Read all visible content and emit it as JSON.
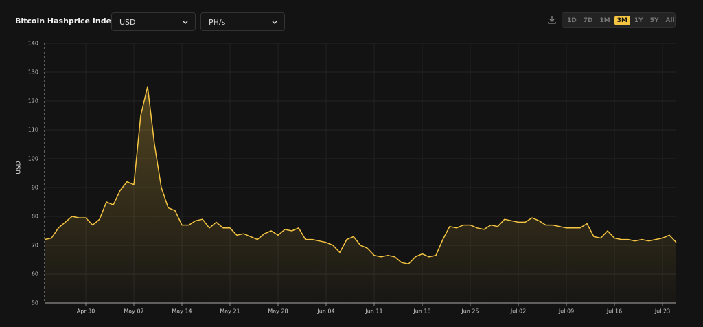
{
  "chart_data": {
    "type": "line",
    "title": "Bitcoin Hashprice Index",
    "y_label": "USD",
    "x": [
      "Apr 24",
      "Apr 25",
      "Apr 26",
      "Apr 27",
      "Apr 28",
      "Apr 29",
      "Apr 30",
      "May 01",
      "May 02",
      "May 03",
      "May 04",
      "May 05",
      "May 06",
      "May 07",
      "May 08",
      "May 09",
      "May 10",
      "May 11",
      "May 12",
      "May 13",
      "May 14",
      "May 15",
      "May 16",
      "May 17",
      "May 18",
      "May 19",
      "May 20",
      "May 21",
      "May 22",
      "May 23",
      "May 24",
      "May 25",
      "May 26",
      "May 27",
      "May 28",
      "May 29",
      "May 30",
      "May 31",
      "Jun 01",
      "Jun 02",
      "Jun 03",
      "Jun 04",
      "Jun 05",
      "Jun 06",
      "Jun 07",
      "Jun 08",
      "Jun 09",
      "Jun 10",
      "Jun 11",
      "Jun 12",
      "Jun 13",
      "Jun 14",
      "Jun 15",
      "Jun 16",
      "Jun 17",
      "Jun 18",
      "Jun 19",
      "Jun 20",
      "Jun 21",
      "Jun 22",
      "Jun 23",
      "Jun 24",
      "Jun 25",
      "Jun 26",
      "Jun 27",
      "Jun 28",
      "Jun 29",
      "Jun 30",
      "Jul 01",
      "Jul 02",
      "Jul 03",
      "Jul 04",
      "Jul 05",
      "Jul 06",
      "Jul 07",
      "Jul 08",
      "Jul 09",
      "Jul 10",
      "Jul 11",
      "Jul 12",
      "Jul 13",
      "Jul 14",
      "Jul 15",
      "Jul 16",
      "Jul 17",
      "Jul 18",
      "Jul 19",
      "Jul 20",
      "Jul 21",
      "Jul 22",
      "Jul 23",
      "Jul 24",
      "Jul 25"
    ],
    "series": [
      {
        "color": "#f5c542",
        "values": [
          72,
          72.5,
          76,
          78,
          80,
          79.5,
          79.5,
          77,
          79,
          85,
          84,
          89,
          92,
          91,
          115,
          125,
          105,
          90,
          83,
          82,
          77,
          77,
          78.5,
          79,
          76,
          78,
          76,
          76,
          73.5,
          74,
          73,
          72,
          74,
          75,
          73.5,
          75.5,
          75,
          76,
          72,
          72,
          71.5,
          71,
          70,
          67.5,
          72,
          73,
          70,
          69,
          66.5,
          66,
          66.5,
          66,
          64,
          63.5,
          66,
          67,
          66,
          66.5,
          72,
          76.5,
          76,
          77,
          77,
          76,
          75.5,
          77,
          76.5,
          79,
          78.5,
          78,
          78,
          79.5,
          78.5,
          77,
          77,
          76.5,
          76,
          76,
          76,
          77.5,
          73,
          72.5,
          75,
          72.5,
          72,
          72,
          71.5,
          72,
          71.5,
          72,
          72.5,
          73.5,
          71
        ]
      }
    ],
    "xticks": [
      "Apr 30",
      "May 07",
      "May 14",
      "May 21",
      "May 28",
      "Jun 04",
      "Jun 11",
      "Jun 18",
      "Jun 25",
      "Jul 02",
      "Jul 09",
      "Jul 16",
      "Jul 23"
    ],
    "ylim": [
      50,
      140
    ],
    "yticks": [
      50,
      60,
      70,
      80,
      90,
      100,
      110,
      120,
      130,
      140
    ],
    "grid": true
  },
  "controls": {
    "currency": "USD",
    "unit": "PH/s",
    "ranges": [
      "1D",
      "7D",
      "1M",
      "3M",
      "1Y",
      "5Y",
      "All"
    ],
    "active_range": "3M"
  }
}
